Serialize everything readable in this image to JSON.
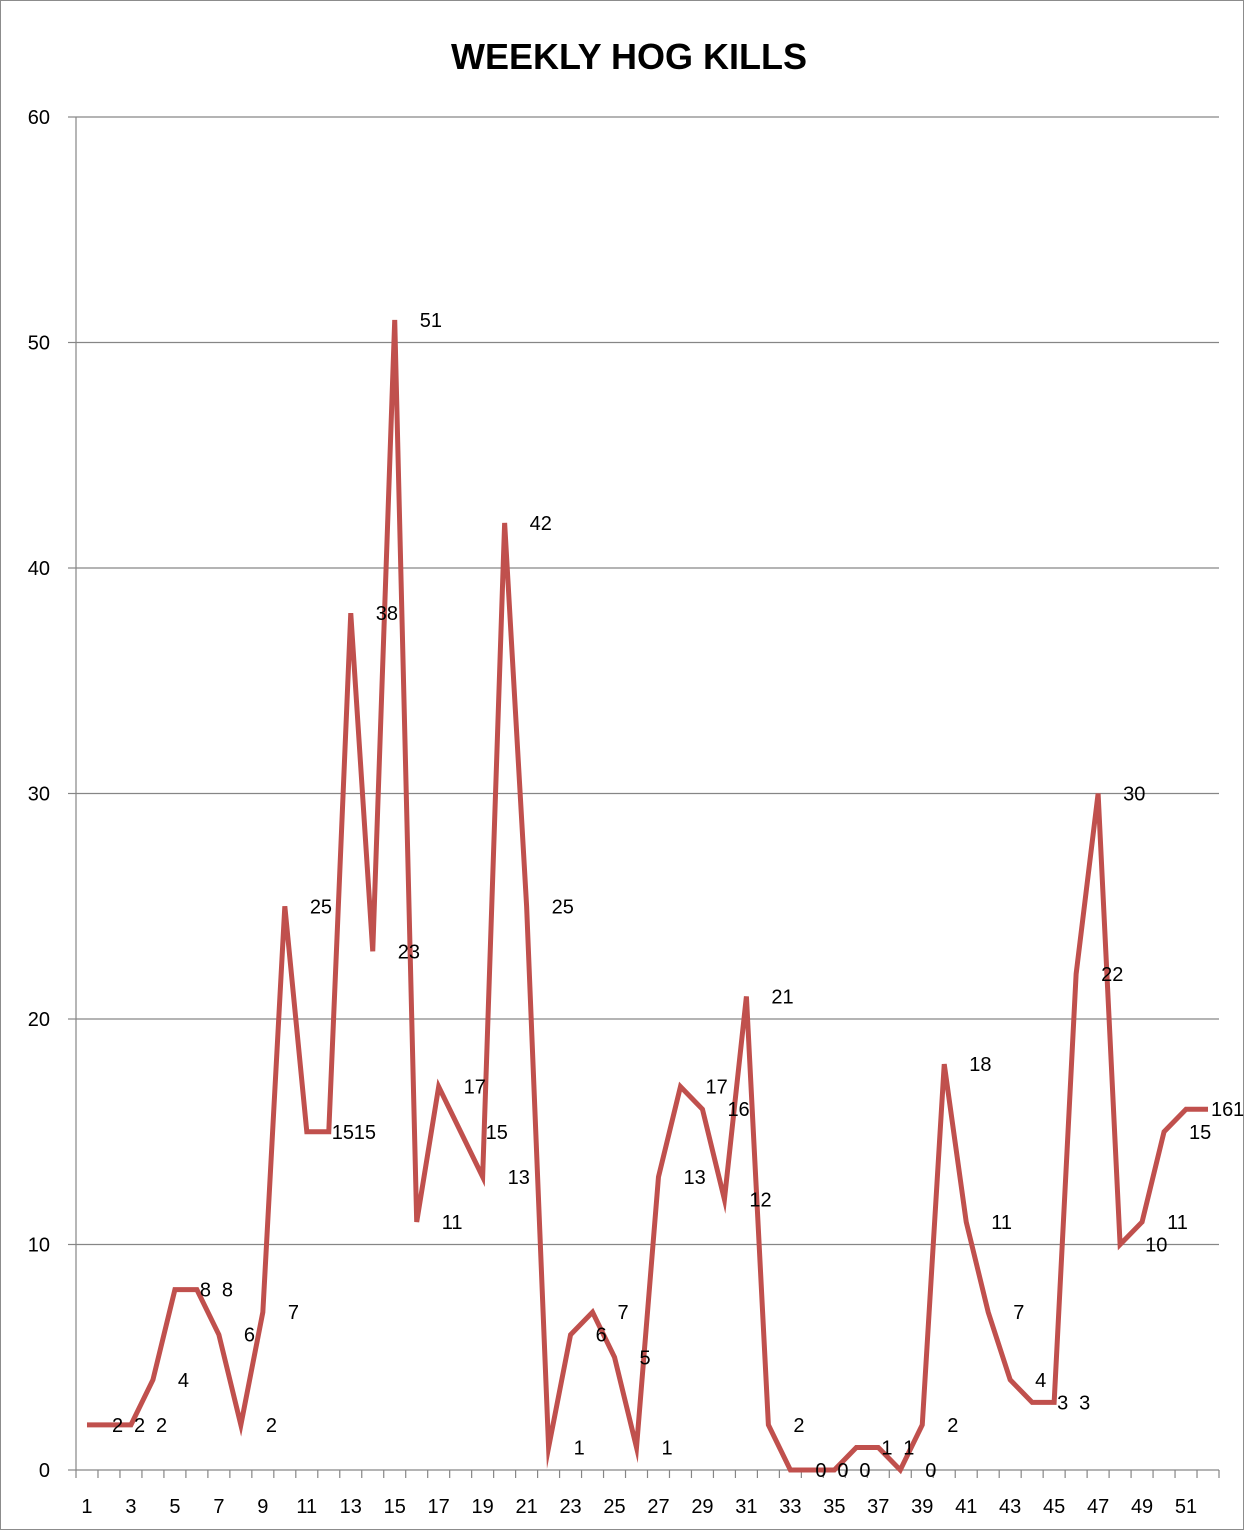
{
  "chart_data": {
    "type": "line",
    "title": "WEEKLY HOG KILLS",
    "xlabel": "",
    "ylabel": "",
    "x": [
      1,
      2,
      3,
      4,
      5,
      6,
      7,
      8,
      9,
      10,
      11,
      12,
      13,
      14,
      15,
      16,
      17,
      18,
      19,
      20,
      21,
      22,
      23,
      24,
      25,
      26,
      27,
      28,
      29,
      30,
      31,
      32,
      33,
      34,
      35,
      36,
      37,
      38,
      39,
      40,
      41,
      42,
      43,
      44,
      45,
      46,
      47,
      48,
      49,
      50,
      51,
      52
    ],
    "x_tick_labels": [
      "1",
      "3",
      "5",
      "7",
      "9",
      "11",
      "13",
      "15",
      "17",
      "19",
      "21",
      "23",
      "25",
      "27",
      "29",
      "31",
      "33",
      "35",
      "37",
      "39",
      "41",
      "43",
      "45",
      "47",
      "49",
      "51"
    ],
    "y_tick_labels": [
      "0",
      "10",
      "20",
      "30",
      "40",
      "50",
      "60"
    ],
    "ylim": [
      0,
      60
    ],
    "grid": "horizontal",
    "series": [
      {
        "values": [
          2,
          2,
          2,
          4,
          8,
          8,
          6,
          2,
          7,
          25,
          15,
          15,
          38,
          23,
          51,
          11,
          17,
          15,
          13,
          42,
          25,
          1,
          6,
          7,
          5,
          1,
          13,
          17,
          16,
          12,
          21,
          2,
          0,
          0,
          0,
          1,
          1,
          0,
          2,
          18,
          11,
          7,
          4,
          3,
          3,
          22,
          30,
          10,
          11,
          15,
          16,
          16
        ],
        "color": "#c0504d"
      }
    ]
  }
}
